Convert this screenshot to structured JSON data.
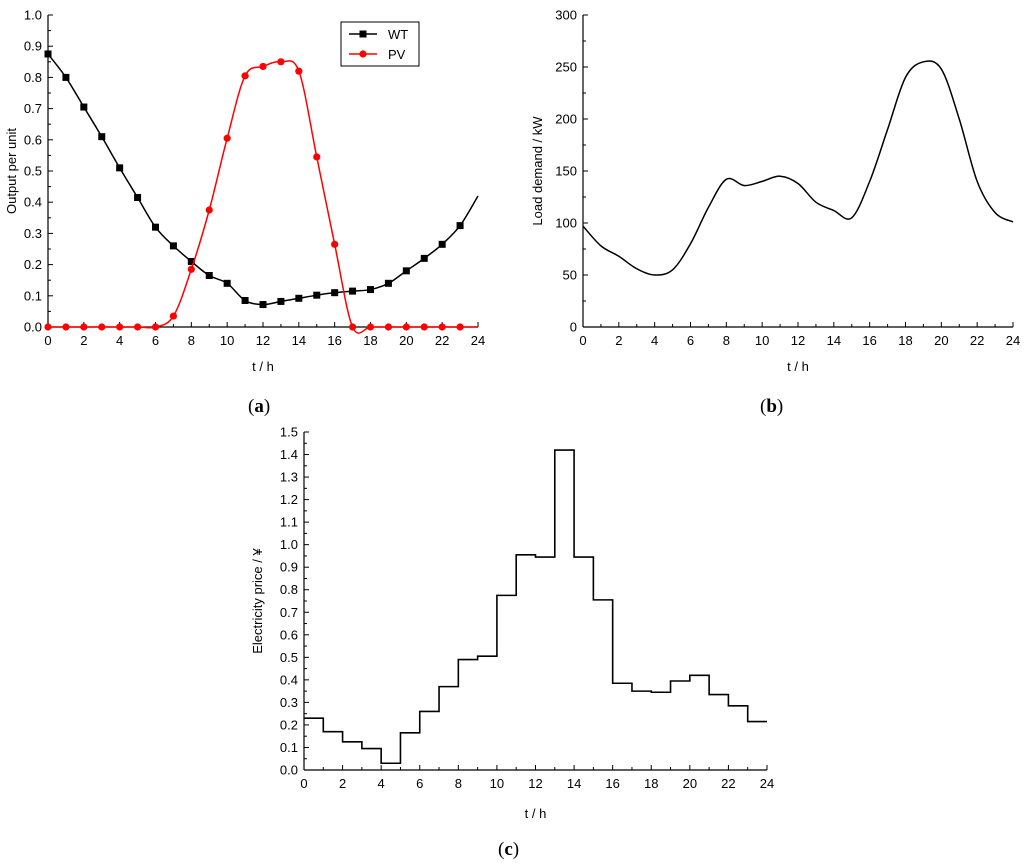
{
  "chart_data": [
    {
      "panel": "(a)",
      "panel_letter": "a",
      "type": "line",
      "xlabel": "t / h",
      "ylabel": "Output per unit",
      "xlim": [
        0,
        24
      ],
      "ylim": [
        0,
        1.0
      ],
      "xticks": [
        "0",
        "2",
        "4",
        "6",
        "8",
        "10",
        "12",
        "14",
        "16",
        "18",
        "20",
        "22",
        "24"
      ],
      "yticks": [
        "0.0",
        "0.1",
        "0.2",
        "0.3",
        "0.4",
        "0.5",
        "0.6",
        "0.7",
        "0.8",
        "0.9",
        "1.0"
      ],
      "legend_position": "top-center",
      "series": [
        {
          "name": "WT",
          "color": "#000000",
          "marker": "square",
          "x": [
            0,
            1,
            2,
            3,
            4,
            5,
            6,
            7,
            8,
            9,
            10,
            11,
            12,
            13,
            14,
            15,
            16,
            17,
            18,
            19,
            20,
            21,
            22,
            23,
            24
          ],
          "values": [
            0.875,
            0.8,
            0.705,
            0.61,
            0.51,
            0.415,
            0.32,
            0.26,
            0.21,
            0.165,
            0.14,
            0.085,
            0.072,
            0.082,
            0.092,
            0.102,
            0.11,
            0.115,
            0.12,
            0.14,
            0.18,
            0.22,
            0.265,
            0.325,
            0.42
          ],
          "marker_x": [
            0,
            1,
            2,
            3,
            4,
            5,
            6,
            7,
            8,
            9,
            10,
            11,
            12,
            13,
            14,
            15,
            16,
            17,
            18,
            19,
            20,
            21,
            22,
            23
          ]
        },
        {
          "name": "PV",
          "color": "#ff0000",
          "marker": "circle",
          "x": [
            0,
            1,
            2,
            3,
            4,
            5,
            6,
            7,
            8,
            9,
            10,
            11,
            12,
            13,
            14,
            15,
            16,
            17,
            18,
            19,
            20,
            21,
            22,
            23,
            24
          ],
          "values": [
            0,
            0,
            0,
            0,
            0,
            0,
            0,
            0.035,
            0.185,
            0.375,
            0.605,
            0.805,
            0.835,
            0.85,
            0.82,
            0.545,
            0.265,
            0,
            0,
            0,
            0,
            0,
            0,
            0,
            0
          ],
          "marker_x": [
            0,
            1,
            2,
            3,
            4,
            5,
            6,
            7,
            8,
            9,
            10,
            11,
            12,
            13,
            14,
            15,
            16,
            17,
            18,
            19,
            20,
            21,
            22,
            23
          ]
        }
      ]
    },
    {
      "panel": "(b)",
      "panel_letter": "b",
      "type": "line",
      "xlabel": "t / h",
      "ylabel": "Load demand / kW",
      "xlim": [
        0,
        24
      ],
      "ylim": [
        0,
        300
      ],
      "xticks": [
        "0",
        "2",
        "4",
        "6",
        "8",
        "10",
        "12",
        "14",
        "16",
        "18",
        "20",
        "22",
        "24"
      ],
      "yticks": [
        "0",
        "50",
        "100",
        "150",
        "200",
        "250",
        "300"
      ],
      "series": [
        {
          "name": "Load",
          "color": "#000000",
          "x": [
            0,
            1,
            2,
            3,
            4,
            5,
            6,
            7,
            8,
            9,
            10,
            11,
            12,
            13,
            14,
            15,
            16,
            17,
            18,
            19,
            20,
            21,
            22,
            23,
            24
          ],
          "values": [
            97,
            78,
            68,
            56,
            50,
            55,
            80,
            115,
            142,
            136,
            140,
            145,
            138,
            120,
            112,
            105,
            140,
            190,
            240,
            255,
            248,
            200,
            140,
            110,
            101
          ]
        }
      ]
    },
    {
      "panel": "(c)",
      "panel_letter": "c",
      "type": "line",
      "step": true,
      "xlabel": "t / h",
      "ylabel": "Electricity price / ¥",
      "xlim": [
        0,
        24
      ],
      "ylim": [
        0,
        1.5
      ],
      "xticks": [
        "0",
        "2",
        "4",
        "6",
        "8",
        "10",
        "12",
        "14",
        "16",
        "18",
        "20",
        "22",
        "24"
      ],
      "yticks": [
        "0.0",
        "0.1",
        "0.2",
        "0.3",
        "0.4",
        "0.5",
        "0.6",
        "0.7",
        "0.8",
        "0.9",
        "1.0",
        "1.1",
        "1.2",
        "1.3",
        "1.4",
        "1.5"
      ],
      "series": [
        {
          "name": "Price",
          "color": "#000000",
          "x": [
            0,
            1,
            2,
            3,
            4,
            5,
            6,
            7,
            8,
            9,
            10,
            11,
            12,
            13,
            14,
            15,
            16,
            17,
            18,
            19,
            20,
            21,
            22,
            23
          ],
          "values": [
            0.23,
            0.17,
            0.125,
            0.095,
            0.03,
            0.165,
            0.26,
            0.37,
            0.49,
            0.505,
            0.775,
            0.955,
            0.945,
            1.42,
            0.945,
            0.755,
            0.385,
            0.35,
            0.345,
            0.395,
            0.42,
            0.335,
            0.285,
            0.215
          ]
        }
      ]
    }
  ]
}
